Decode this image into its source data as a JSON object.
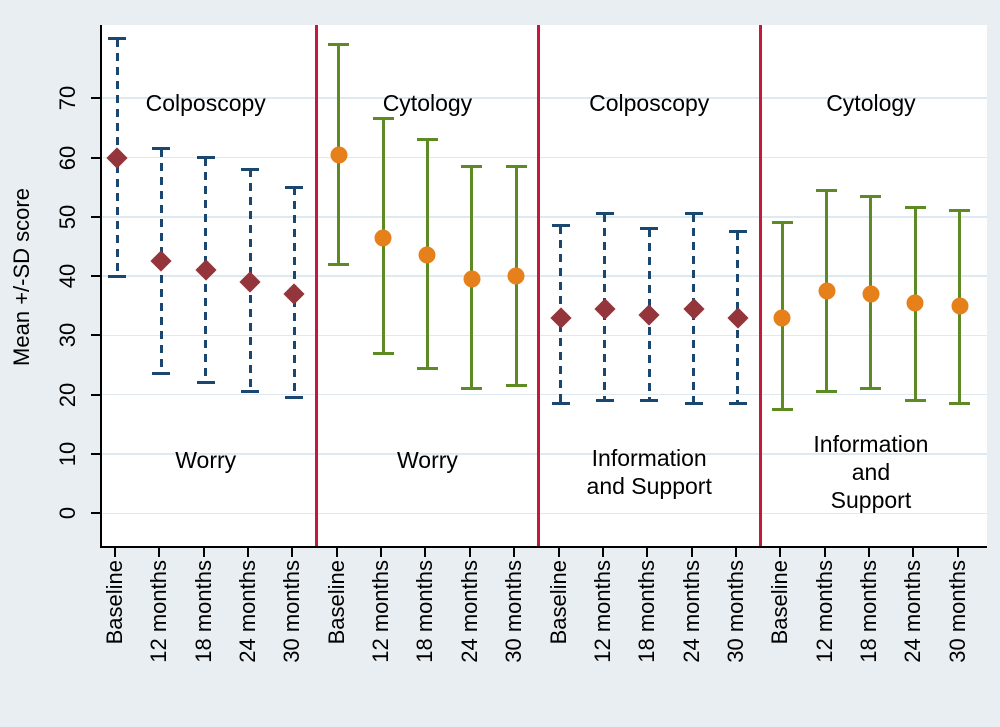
{
  "figure": {
    "background": "#e8eef2",
    "plot_background": "#ffffff",
    "gridline_color": "#dfe9f0",
    "axis_color": "#000000",
    "separator_color": "#c8173c"
  },
  "chart_data": {
    "type": "errorbar",
    "title": "",
    "ylabel": "Mean +/-SD score",
    "xlabel": "",
    "y_ticks": [
      0,
      10,
      20,
      30,
      40,
      50,
      60,
      70
    ],
    "ylim": [
      -5.5,
      82.3
    ],
    "grid": "horizontal",
    "legend_position": "none",
    "categories": [
      "Baseline",
      "12 months",
      "18 months",
      "24 months",
      "30 months"
    ],
    "panels": [
      {
        "group_label": "Colposcopy",
        "outcome_label": "Worry",
        "marker": "diamond",
        "marker_color": "#93353b",
        "bar_color": "#1a476f",
        "bar_style": "dashed",
        "points": [
          {
            "category": "Baseline",
            "mean": 60.0,
            "upper": 80.0,
            "lower": 40.0
          },
          {
            "category": "12 months",
            "mean": 42.5,
            "upper": 61.5,
            "lower": 23.5
          },
          {
            "category": "18 months",
            "mean": 41.0,
            "upper": 60.0,
            "lower": 22.0
          },
          {
            "category": "24 months",
            "mean": 39.0,
            "upper": 58.0,
            "lower": 20.5
          },
          {
            "category": "30 months",
            "mean": 37.0,
            "upper": 55.0,
            "lower": 19.5
          }
        ]
      },
      {
        "group_label": "Cytology",
        "outcome_label": "Worry",
        "marker": "circle",
        "marker_color": "#e5801a",
        "bar_color": "#5e8a24",
        "bar_style": "solid",
        "points": [
          {
            "category": "Baseline",
            "mean": 60.5,
            "upper": 79.0,
            "lower": 42.0
          },
          {
            "category": "12 months",
            "mean": 46.5,
            "upper": 66.5,
            "lower": 27.0
          },
          {
            "category": "18 months",
            "mean": 43.5,
            "upper": 63.0,
            "lower": 24.5
          },
          {
            "category": "24 months",
            "mean": 39.5,
            "upper": 58.5,
            "lower": 21.0
          },
          {
            "category": "30 months",
            "mean": 40.0,
            "upper": 58.5,
            "lower": 21.5
          }
        ]
      },
      {
        "group_label": "Colposcopy",
        "outcome_label": "Information\nand Support",
        "marker": "diamond",
        "marker_color": "#93353b",
        "bar_color": "#1a476f",
        "bar_style": "dashed",
        "points": [
          {
            "category": "Baseline",
            "mean": 33.0,
            "upper": 48.5,
            "lower": 18.5
          },
          {
            "category": "12 months",
            "mean": 34.5,
            "upper": 50.5,
            "lower": 19.0
          },
          {
            "category": "18 months",
            "mean": 33.5,
            "upper": 48.0,
            "lower": 19.0
          },
          {
            "category": "24 months",
            "mean": 34.5,
            "upper": 50.5,
            "lower": 18.5
          },
          {
            "category": "30 months",
            "mean": 33.0,
            "upper": 47.5,
            "lower": 18.5
          }
        ]
      },
      {
        "group_label": "Cytology",
        "outcome_label": "Information\nand Support",
        "marker": "circle",
        "marker_color": "#e5801a",
        "bar_color": "#5e8a24",
        "bar_style": "solid",
        "points": [
          {
            "category": "Baseline",
            "mean": 33.0,
            "upper": 49.0,
            "lower": 17.5
          },
          {
            "category": "12 months",
            "mean": 37.5,
            "upper": 54.5,
            "lower": 20.5
          },
          {
            "category": "18 months",
            "mean": 37.0,
            "upper": 53.5,
            "lower": 21.0
          },
          {
            "category": "24 months",
            "mean": 35.5,
            "upper": 51.5,
            "lower": 19.0
          },
          {
            "category": "30 months",
            "mean": 35.0,
            "upper": 51.0,
            "lower": 18.5
          }
        ]
      }
    ]
  }
}
